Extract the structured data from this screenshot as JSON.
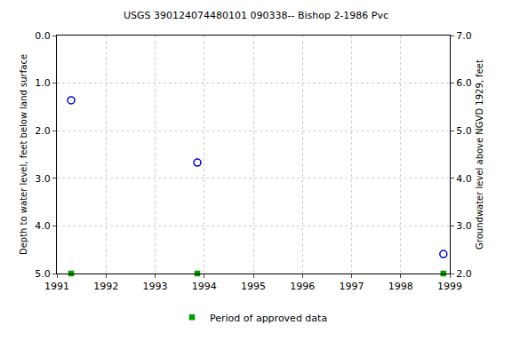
{
  "chart_data": {
    "type": "scatter",
    "title": "USGS 390124074480101 090338-- Bishop 2-1986 Pvc",
    "x_label": "",
    "y_label": "Depth to water level, feet below land surface",
    "y2_label": "Groundwater level above NGVD 1929, feet",
    "xlim": [
      1991,
      1999
    ],
    "xticks": [
      1991,
      1992,
      1993,
      1994,
      1995,
      1996,
      1997,
      1998,
      1999
    ],
    "ylim": [
      5,
      0
    ],
    "yticks": [
      {
        "value": 0,
        "label": "0.0"
      },
      {
        "value": 1,
        "label": "1.0"
      },
      {
        "value": 2,
        "label": "2.0"
      },
      {
        "value": 3,
        "label": "3.0"
      },
      {
        "value": 4,
        "label": "4.0"
      },
      {
        "value": 5,
        "label": "5.0"
      }
    ],
    "y2lim": [
      2,
      7
    ],
    "y2ticks": [
      {
        "value": 2,
        "label": "2.0"
      },
      {
        "value": 3,
        "label": "3.0"
      },
      {
        "value": 4,
        "label": "4.0"
      },
      {
        "value": 5,
        "label": "5.0"
      },
      {
        "value": 6,
        "label": "6.0"
      },
      {
        "value": 7,
        "label": "7.0"
      }
    ],
    "grid": true,
    "legend": "bottom",
    "series": [
      {
        "x": [
          1991.29,
          1993.86,
          1998.87
        ],
        "values": [
          1.36,
          2.67,
          4.59
        ],
        "color": "#0000cc",
        "marker": "circle-open"
      },
      {
        "name": "Period of approved data",
        "x": [
          1991.29,
          1993.86,
          1998.87
        ],
        "values": [
          5,
          5,
          5
        ],
        "color": "#00a000",
        "marker": "square"
      }
    ]
  }
}
